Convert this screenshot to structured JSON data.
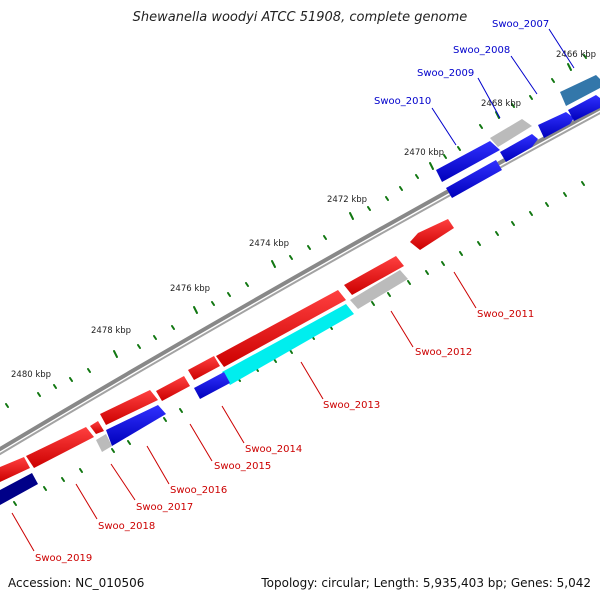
{
  "title": "Shewanella woodyi ATCC 51908, complete genome",
  "footer": {
    "accession": "Accession: NC_010506",
    "summary": "Topology: circular; Length: 5,935,403 bp; Genes: 5,042"
  },
  "colors": {
    "forward_gene": "#0000ee",
    "reverse_gene": "#ee0000",
    "pseudo_gene": "#bbbbbb",
    "highlight_gene": "#00eeee",
    "tick": "#117711",
    "backbone": "#888888"
  },
  "scale_labels": [
    "2466 kbp",
    "2468 kbp",
    "2470 kbp",
    "2472 kbp",
    "2474 kbp",
    "2476 kbp",
    "2478 kbp",
    "2480 kbp"
  ],
  "genes_forward": [
    {
      "name": "Swoo_2007",
      "color": "#3377aa"
    },
    {
      "name": "Swoo_2008",
      "color": "#0000ee"
    },
    {
      "name": "Swoo_2009",
      "color": "#bbbbbb"
    },
    {
      "name": "Swoo_2010",
      "color": "#0000ee"
    }
  ],
  "genes_reverse": [
    {
      "name": "Swoo_2011",
      "color": "#ee0000"
    },
    {
      "name": "Swoo_2012",
      "color": "#bbbbbb"
    },
    {
      "name": "Swoo_2013",
      "color": "#00eeee"
    },
    {
      "name": "Swoo_2014",
      "color": "#0000ee"
    },
    {
      "name": "Swoo_2015",
      "color": "#ee0000"
    },
    {
      "name": "Swoo_2016",
      "color": "#0000ee"
    },
    {
      "name": "Swoo_2017",
      "color": "#bbbbbb"
    },
    {
      "name": "Swoo_2018",
      "color": "#ee0000"
    },
    {
      "name": "Swoo_2019",
      "color": "#000088"
    }
  ]
}
